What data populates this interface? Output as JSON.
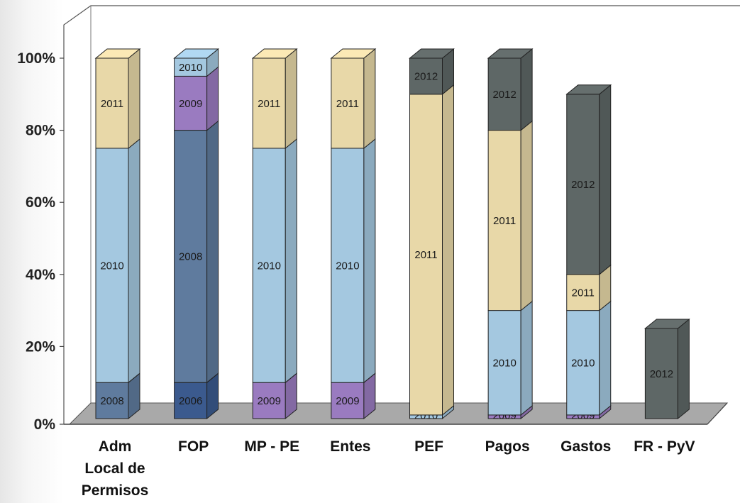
{
  "chart_data": {
    "type": "bar",
    "stacked": true,
    "three_d": true,
    "title": "",
    "xlabel": "",
    "ylabel": "",
    "ylim": [
      0,
      100
    ],
    "yticks": [
      "0%",
      "20%",
      "40%",
      "60%",
      "80%",
      "100%"
    ],
    "grid": false,
    "legend": "none",
    "categories": [
      [
        "Adm",
        "Local de",
        "Permisos"
      ],
      [
        "FOP"
      ],
      [
        "MP - PE"
      ],
      [
        "Entes"
      ],
      [
        "PEF"
      ],
      [
        "Pagos"
      ],
      [
        "Gastos"
      ],
      [
        "FR - PyV"
      ]
    ],
    "series_colors": {
      "2008": "#5f7b9e",
      "2009": "#9a7bc0",
      "2010": "#a4c8e0",
      "2011": "#e8d8a8",
      "2012": "#5e6766"
    },
    "bars": [
      {
        "segments": [
          {
            "year": "2008",
            "value": 10
          },
          {
            "year": "2010",
            "value": 65
          },
          {
            "year": "2011",
            "value": 25
          }
        ]
      },
      {
        "segments": [
          {
            "year": "2006",
            "value": 10,
            "color": "#3b5a8e"
          },
          {
            "year": "2008",
            "value": 70
          },
          {
            "year": "2009",
            "value": 15
          },
          {
            "year": "2010",
            "value": 5
          }
        ]
      },
      {
        "segments": [
          {
            "year": "2009",
            "value": 10
          },
          {
            "year": "2010",
            "value": 65
          },
          {
            "year": "2011",
            "value": 25
          }
        ]
      },
      {
        "segments": [
          {
            "year": "2009",
            "value": 10
          },
          {
            "year": "2010",
            "value": 65
          },
          {
            "year": "2011",
            "value": 25
          }
        ]
      },
      {
        "segments": [
          {
            "year": "2010",
            "value": 1,
            "label": "2010"
          },
          {
            "year": "2011",
            "value": 89
          },
          {
            "year": "2012",
            "value": 10
          }
        ]
      },
      {
        "segments": [
          {
            "year": "2009",
            "value": 1,
            "label": "2009"
          },
          {
            "year": "2010",
            "value": 29
          },
          {
            "year": "2011",
            "value": 50
          },
          {
            "year": "2012",
            "value": 20
          }
        ]
      },
      {
        "segments": [
          {
            "year": "2009",
            "value": 1,
            "label": "2009"
          },
          {
            "year": "2010",
            "value": 29
          },
          {
            "year": "2011",
            "value": 10
          },
          {
            "year": "2012",
            "value": 50
          }
        ]
      },
      {
        "segments": [
          {
            "year": "2012",
            "value": 25
          }
        ]
      }
    ]
  }
}
